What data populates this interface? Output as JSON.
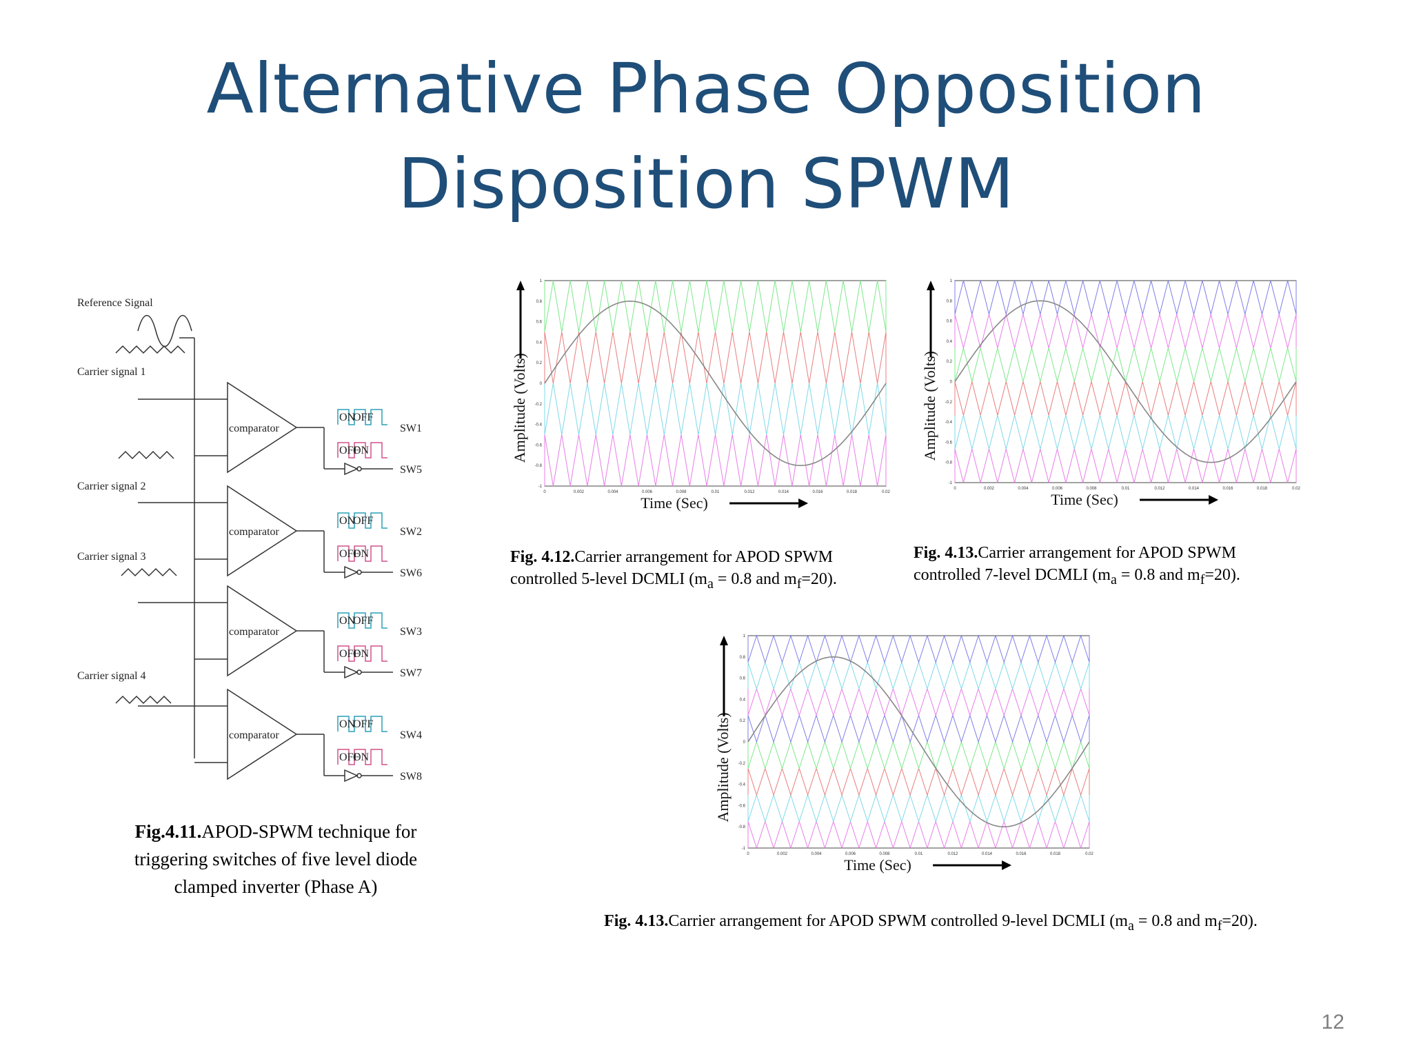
{
  "slide": {
    "title_line1": "Alternative Phase Opposition",
    "title_line2": "Disposition SPWM",
    "page_number": "12"
  },
  "block_diagram": {
    "reference_label": "Reference  Signal",
    "carrier_labels": [
      "Carrier signal 1",
      "Carrier signal 2",
      "Carrier signal 3",
      "Carrier signal 4"
    ],
    "comparator_label": "comparator",
    "switch_labels": [
      [
        "SW1",
        "SW5"
      ],
      [
        "SW2",
        "SW6"
      ],
      [
        "SW3",
        "SW7"
      ],
      [
        "SW4",
        "SW8"
      ]
    ],
    "on_label": "ON",
    "off_label": "OFF"
  },
  "captions": {
    "fig411": {
      "bold": "Fig.4.11.",
      "text": "APOD-SPWM technique for triggering switches of five level diode clamped inverter (Phase A)"
    },
    "fig412": {
      "bold": "Fig. 4.12.",
      "text1": "Carrier arrangement for APOD SPWM controlled 5-level DCMLI (m",
      "sub1": "a",
      "text2": " = 0.8 and m",
      "sub2": "f",
      "text3": "=20)."
    },
    "fig413a": {
      "bold": "Fig. 4.13.",
      "text1": "Carrier arrangement for APOD SPWM controlled 7-level DCMLI (m",
      "sub1": "a",
      "text2": " = 0.8 and m",
      "sub2": "f",
      "text3": "=20)."
    },
    "fig413b": {
      "bold": "Fig. 4.13.",
      "text1": "Carrier arrangement for APOD SPWM controlled 9-level DCMLI (m",
      "sub1": "a",
      "text2": " = 0.8 and m",
      "sub2": "f",
      "text3": "=20)."
    }
  },
  "chart_data": [
    {
      "type": "line",
      "levels": 5,
      "xlabel": "Time (Sec)",
      "ylabel": "Amplitude (Volts)",
      "xlim": [
        0,
        0.02
      ],
      "ylim": [
        -1,
        1
      ],
      "xticks": [
        "0",
        "0.002",
        "0.004",
        "0.006",
        "0.008",
        "0.01",
        "0.012",
        "0.014",
        "0.016",
        "0.018",
        "0.02"
      ],
      "yticks": [
        "1",
        "0.8",
        "0.6",
        "0.4",
        "0.2",
        "0",
        "-0.2",
        "-0.4",
        "-0.6",
        "-0.8",
        "-1"
      ],
      "reference": {
        "amplitude": 0.8,
        "frequency_hz": 50
      },
      "carrier_frequency_ratio": 20,
      "carrier_colors": [
        "#e87de8",
        "#7fd8e8",
        "#e87d7d",
        "#7de88a"
      ]
    },
    {
      "type": "line",
      "levels": 7,
      "xlabel": "Time (Sec)",
      "ylabel": "Amplitude (Volts)",
      "xlim": [
        0,
        0.02
      ],
      "ylim": [
        -1,
        1
      ],
      "xticks": [
        "0",
        "0.002",
        "0.004",
        "0.006",
        "0.008",
        "0.01",
        "0.012",
        "0.014",
        "0.016",
        "0.018",
        "0.02"
      ],
      "yticks": [
        "1",
        "0.8",
        "0.6",
        "0.4",
        "0.2",
        "0",
        "-0.2",
        "-0.4",
        "-0.6",
        "-0.8",
        "-1"
      ],
      "reference": {
        "amplitude": 0.8,
        "frequency_hz": 50
      },
      "carrier_frequency_ratio": 20,
      "carrier_colors": [
        "#e87de8",
        "#7fd8e8",
        "#e87d7d",
        "#7de88a",
        "#e87de8",
        "#7d7de8"
      ]
    },
    {
      "type": "line",
      "levels": 9,
      "xlabel": "Time (Sec)",
      "ylabel": "Amplitude (Volts)",
      "xlim": [
        0,
        0.02
      ],
      "ylim": [
        -1,
        1
      ],
      "xticks": [
        "0",
        "0.002",
        "0.004",
        "0.006",
        "0.008",
        "0.01",
        "0.012",
        "0.014",
        "0.016",
        "0.018",
        "0.02"
      ],
      "yticks": [
        "1",
        "0.8",
        "0.6",
        "0.4",
        "0.2",
        "0",
        "-0.2",
        "-0.4",
        "-0.6",
        "-0.8",
        "-1"
      ],
      "reference": {
        "amplitude": 0.8,
        "frequency_hz": 50
      },
      "carrier_frequency_ratio": 20,
      "carrier_colors": [
        "#e87de8",
        "#7fd8e8",
        "#e87d7d",
        "#7de88a",
        "#7d7de8",
        "#e87de8",
        "#7fd8e8",
        "#7d7de8"
      ]
    }
  ]
}
